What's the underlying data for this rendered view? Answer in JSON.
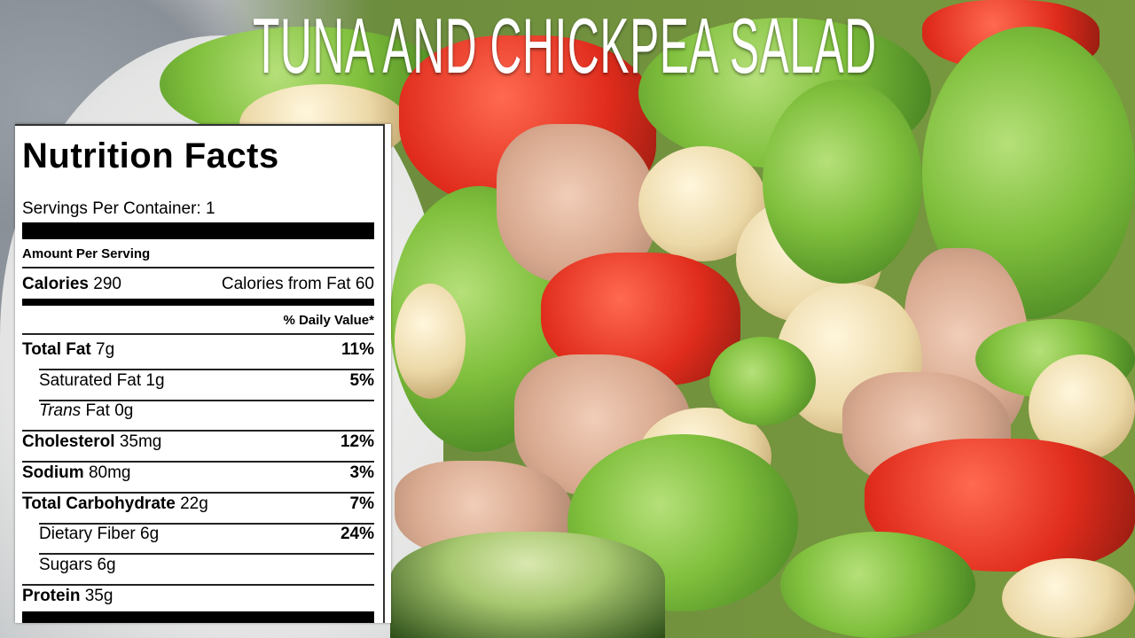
{
  "title": "TUNA AND CHICKPEA SALAD",
  "nutrition": {
    "heading": "Nutrition Facts",
    "servings": "Servings Per Container: 1",
    "amount_per_serving": "Amount Per Serving",
    "calories_label": "Calories",
    "calories_value": "290",
    "calories_from_fat": "Calories from Fat 60",
    "daily_value_header": "% Daily Value*",
    "rows": [
      {
        "label": "Total Fat",
        "amount": "7g",
        "dv": "11%",
        "bold": true
      },
      {
        "label": "Saturated Fat",
        "amount": "1g",
        "dv": "5%",
        "bold": false
      },
      {
        "label": "Trans",
        "label_suffix": "Fat",
        "amount": "0g",
        "dv": "",
        "bold": false
      },
      {
        "label": "Cholesterol",
        "amount": "35mg",
        "dv": "12%",
        "bold": true
      },
      {
        "label": "Sodium",
        "amount": "80mg",
        "dv": "3%",
        "bold": true
      },
      {
        "label": "Total Carbohydrate",
        "amount": "22g",
        "dv": "7%",
        "bold": true
      },
      {
        "label": "Dietary Fiber",
        "amount": "6g",
        "dv": "24%",
        "bold": false
      },
      {
        "label": "Sugars",
        "amount": "6g",
        "dv": "",
        "bold": false
      },
      {
        "label": "Protein",
        "amount": "35g",
        "dv": "",
        "bold": true
      }
    ]
  },
  "colors": {
    "title_text": "#ffffff",
    "label_background": "#ffffff",
    "label_text": "#000000"
  }
}
